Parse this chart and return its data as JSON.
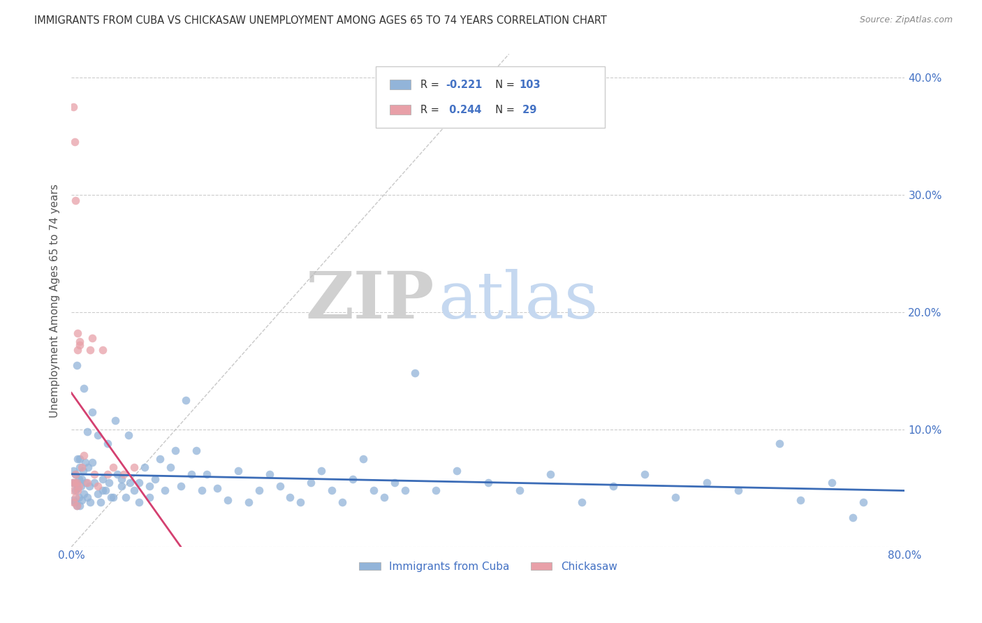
{
  "title": "IMMIGRANTS FROM CUBA VS CHICKASAW UNEMPLOYMENT AMONG AGES 65 TO 74 YEARS CORRELATION CHART",
  "source": "Source: ZipAtlas.com",
  "ylabel": "Unemployment Among Ages 65 to 74 years",
  "xlim": [
    0.0,
    0.8
  ],
  "ylim": [
    0.0,
    0.42
  ],
  "blue_color": "#92b4d9",
  "pink_color": "#e8a0a8",
  "blue_line_color": "#3b6cb7",
  "pink_line_color": "#d44070",
  "text_color": "#4472c4",
  "watermark_zip": "ZIP",
  "watermark_atlas": "atlas",
  "blue_scatter_x": [
    0.001,
    0.002,
    0.002,
    0.003,
    0.003,
    0.004,
    0.004,
    0.005,
    0.005,
    0.006,
    0.006,
    0.007,
    0.007,
    0.008,
    0.008,
    0.009,
    0.01,
    0.01,
    0.011,
    0.012,
    0.013,
    0.014,
    0.015,
    0.016,
    0.017,
    0.018,
    0.02,
    0.022,
    0.025,
    0.028,
    0.03,
    0.033,
    0.036,
    0.04,
    0.044,
    0.048,
    0.052,
    0.056,
    0.06,
    0.065,
    0.07,
    0.075,
    0.08,
    0.09,
    0.1,
    0.11,
    0.12,
    0.13,
    0.14,
    0.15,
    0.16,
    0.17,
    0.18,
    0.19,
    0.2,
    0.21,
    0.22,
    0.23,
    0.24,
    0.25,
    0.26,
    0.27,
    0.28,
    0.29,
    0.3,
    0.31,
    0.32,
    0.33,
    0.35,
    0.37,
    0.4,
    0.43,
    0.46,
    0.49,
    0.52,
    0.55,
    0.58,
    0.61,
    0.64,
    0.68,
    0.7,
    0.73,
    0.75,
    0.76,
    0.005,
    0.008,
    0.012,
    0.015,
    0.02,
    0.025,
    0.03,
    0.035,
    0.038,
    0.042,
    0.048,
    0.055,
    0.065,
    0.075,
    0.085,
    0.095,
    0.105,
    0.115,
    0.125
  ],
  "blue_scatter_y": [
    0.055,
    0.065,
    0.04,
    0.055,
    0.038,
    0.048,
    0.062,
    0.055,
    0.035,
    0.075,
    0.05,
    0.058,
    0.042,
    0.068,
    0.035,
    0.052,
    0.058,
    0.04,
    0.065,
    0.045,
    0.072,
    0.055,
    0.042,
    0.068,
    0.052,
    0.038,
    0.072,
    0.055,
    0.045,
    0.038,
    0.058,
    0.048,
    0.055,
    0.042,
    0.062,
    0.052,
    0.042,
    0.055,
    0.048,
    0.038,
    0.068,
    0.052,
    0.058,
    0.048,
    0.082,
    0.125,
    0.082,
    0.062,
    0.05,
    0.04,
    0.065,
    0.038,
    0.048,
    0.062,
    0.052,
    0.042,
    0.038,
    0.055,
    0.065,
    0.048,
    0.038,
    0.058,
    0.075,
    0.048,
    0.042,
    0.055,
    0.048,
    0.148,
    0.048,
    0.065,
    0.055,
    0.048,
    0.062,
    0.038,
    0.052,
    0.062,
    0.042,
    0.055,
    0.048,
    0.088,
    0.04,
    0.055,
    0.025,
    0.038,
    0.155,
    0.075,
    0.135,
    0.098,
    0.115,
    0.095,
    0.048,
    0.088,
    0.042,
    0.108,
    0.058,
    0.095,
    0.055,
    0.042,
    0.075,
    0.068,
    0.052,
    0.062,
    0.048
  ],
  "pink_scatter_x": [
    0.001,
    0.002,
    0.002,
    0.003,
    0.004,
    0.004,
    0.005,
    0.005,
    0.006,
    0.006,
    0.007,
    0.008,
    0.01,
    0.012,
    0.015,
    0.018,
    0.02,
    0.022,
    0.025,
    0.03,
    0.035,
    0.04,
    0.05,
    0.06,
    0.002,
    0.003,
    0.004,
    0.006,
    0.008
  ],
  "pink_scatter_y": [
    0.055,
    0.048,
    0.038,
    0.055,
    0.062,
    0.042,
    0.055,
    0.035,
    0.168,
    0.048,
    0.052,
    0.175,
    0.068,
    0.078,
    0.055,
    0.168,
    0.178,
    0.062,
    0.052,
    0.168,
    0.062,
    0.068,
    0.062,
    0.068,
    0.375,
    0.345,
    0.295,
    0.182,
    0.172
  ],
  "pink_trend_x": [
    0.0,
    0.32
  ],
  "blue_trend_x": [
    0.0,
    0.8
  ]
}
